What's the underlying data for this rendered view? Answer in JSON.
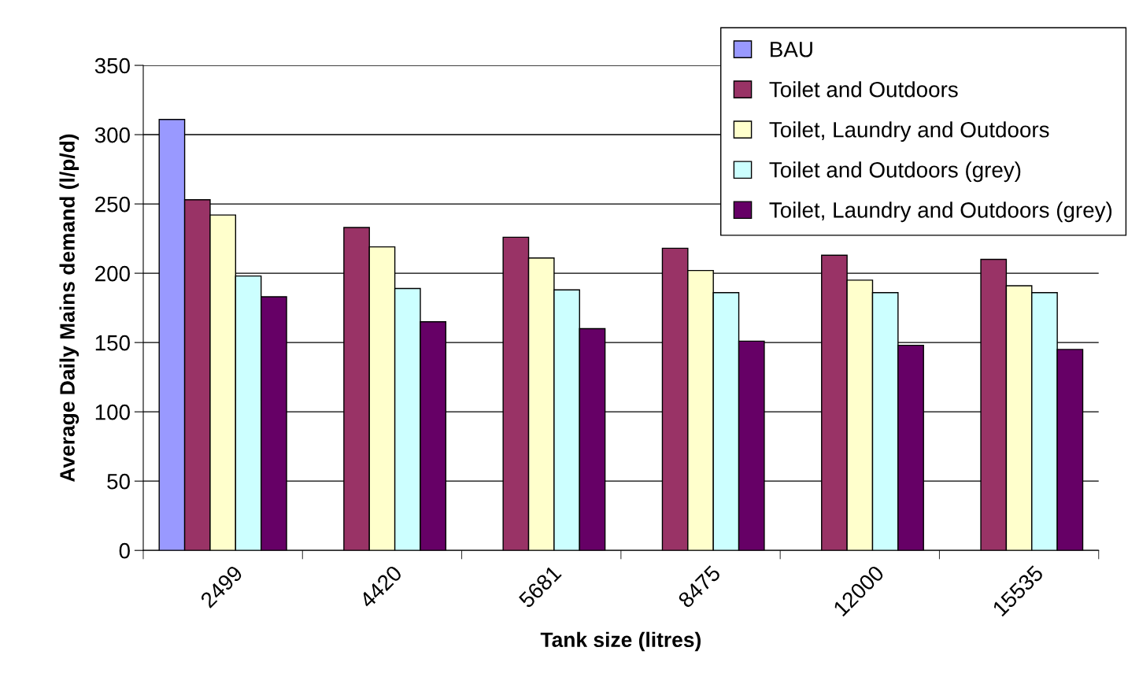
{
  "chart_data": {
    "type": "bar",
    "xlabel": "Tank size (litres)",
    "ylabel": "Average Daily Mains demand (l/p/d)",
    "categories": [
      "2499",
      "4420",
      "5681",
      "8475",
      "12000",
      "15535"
    ],
    "series": [
      {
        "name": "BAU",
        "color": "#9999ff",
        "values": [
          311,
          null,
          null,
          null,
          null,
          null
        ]
      },
      {
        "name": "Toilet and Outdoors",
        "color": "#993366",
        "values": [
          253,
          233,
          226,
          218,
          213,
          210
        ]
      },
      {
        "name": "Toilet, Laundry and Outdoors",
        "color": "#ffffcc",
        "values": [
          242,
          219,
          211,
          202,
          195,
          191
        ]
      },
      {
        "name": "Toilet and Outdoors (grey)",
        "color": "#ccffff",
        "values": [
          198,
          189,
          188,
          186,
          186,
          186
        ]
      },
      {
        "name": "Toilet, Laundry and Outdoors (grey)",
        "color": "#660066",
        "values": [
          183,
          165,
          160,
          151,
          148,
          145
        ]
      }
    ],
    "ylim": [
      0,
      350
    ],
    "yticks": [
      0,
      50,
      100,
      150,
      200,
      250,
      300,
      350
    ],
    "grid": "y",
    "legend": "top right"
  }
}
